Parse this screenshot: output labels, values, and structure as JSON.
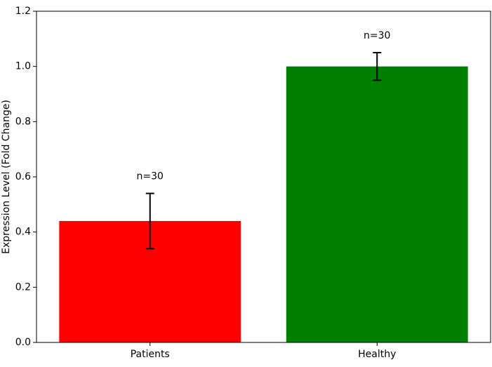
{
  "chart_data": {
    "type": "bar",
    "y_label": "Expression Level (Fold Change)",
    "categories": [
      "Patients",
      "Healthy"
    ],
    "values": [
      0.44,
      1.0
    ],
    "errors": [
      0.1,
      0.05
    ],
    "colors": [
      "#ff0000",
      "#008000"
    ],
    "annotations": [
      "n=30",
      "n=30"
    ],
    "ylim": [
      0,
      1.2
    ],
    "yticks": [
      {
        "value": 0,
        "label": "0.0"
      },
      0.2,
      0.4,
      0.6,
      0.8,
      {
        "value": 1,
        "label": "1.0"
      },
      1.2
    ],
    "grid": false
  }
}
